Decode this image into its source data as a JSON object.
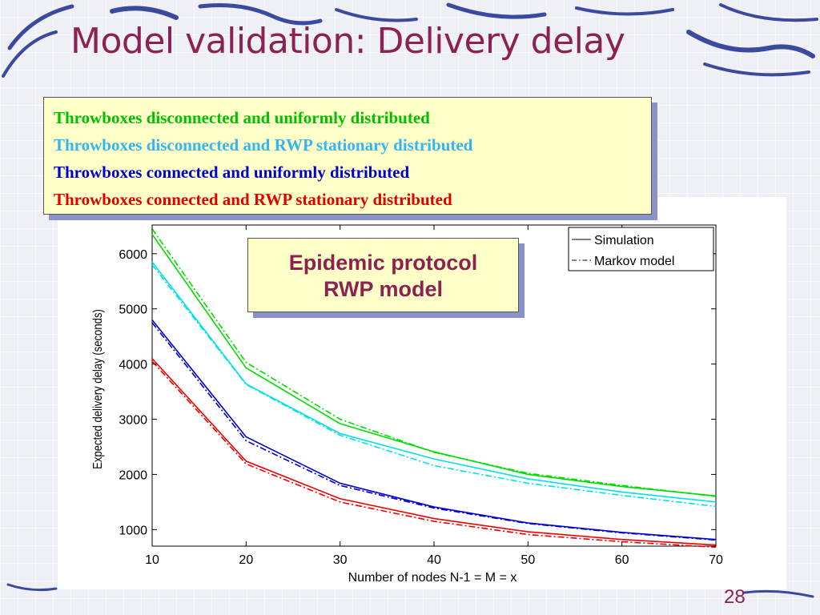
{
  "slide": {
    "title": "Model validation: Delivery delay",
    "page_number": "28"
  },
  "legend_box": {
    "lines": [
      {
        "text": "Throwboxes disconnected and uniformly distributed",
        "color": "#00c000"
      },
      {
        "text": "Throwboxes disconnected and RWP stationary distributed",
        "color": "#33b6f0"
      },
      {
        "text": "Throwboxes connected and uniformly distributed",
        "color": "#0000cc"
      },
      {
        "text": "Throwboxes connected and RWP stationary distributed",
        "color": "#e00000"
      }
    ]
  },
  "annotation": {
    "line1": "Epidemic protocol",
    "line2": "RWP model"
  },
  "chart_data": {
    "type": "line",
    "xlabel": "Number of nodes N-1 = M = x",
    "ylabel": "Expected delivery delay (seconds)",
    "xlim": [
      10,
      70
    ],
    "ylim": [
      700,
      6520
    ],
    "x": [
      10,
      20,
      30,
      40,
      50,
      60,
      70
    ],
    "xticks": [
      10,
      20,
      30,
      40,
      50,
      60,
      70
    ],
    "yticks": [
      1000,
      2000,
      3000,
      4000,
      5000,
      6000
    ],
    "grid": false,
    "legend": {
      "placement": "top-right",
      "entries": [
        {
          "label": "Simulation",
          "style": "solid"
        },
        {
          "label": "Markov model",
          "style": "dashdot"
        }
      ]
    },
    "series": [
      {
        "color": "#00dd00",
        "kind": "simulation",
        "values": [
          6350,
          3930,
          2920,
          2410,
          2000,
          1780,
          1610
        ]
      },
      {
        "color": "#00dd00",
        "kind": "markov",
        "values": [
          6450,
          4030,
          3000,
          2400,
          2020,
          1800,
          1600
        ]
      },
      {
        "color": "#00e0e8",
        "kind": "simulation",
        "values": [
          5850,
          3640,
          2740,
          2280,
          1920,
          1680,
          1500
        ]
      },
      {
        "color": "#00e0e8",
        "kind": "markov",
        "values": [
          5800,
          3630,
          2710,
          2160,
          1840,
          1620,
          1420
        ]
      },
      {
        "color": "#0000cc",
        "kind": "simulation",
        "values": [
          4800,
          2680,
          1840,
          1410,
          1120,
          950,
          820
        ]
      },
      {
        "color": "#0000cc",
        "kind": "markov",
        "values": [
          4750,
          2610,
          1800,
          1390,
          1110,
          940,
          810
        ]
      },
      {
        "color": "#ee0000",
        "kind": "simulation",
        "values": [
          4100,
          2240,
          1560,
          1200,
          960,
          820,
          720
        ]
      },
      {
        "color": "#ee0000",
        "kind": "markov",
        "values": [
          4050,
          2190,
          1500,
          1150,
          910,
          780,
          680
        ]
      }
    ]
  }
}
